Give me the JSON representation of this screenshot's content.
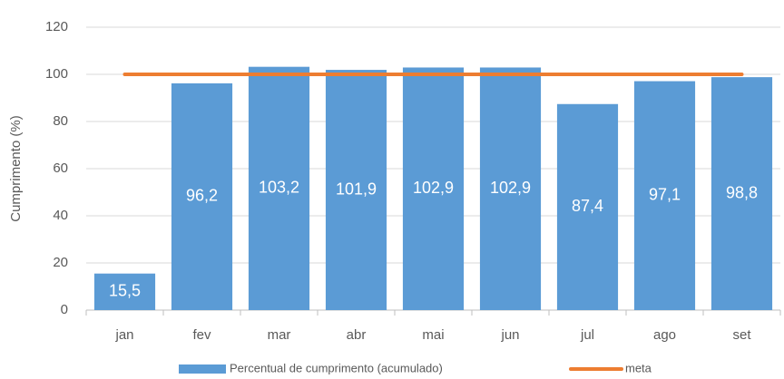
{
  "chart_data": {
    "type": "bar",
    "y_label": "Cumprimento (%)",
    "categories": [
      "jan",
      "fev",
      "mar",
      "abr",
      "mai",
      "jun",
      "jul",
      "ago",
      "set"
    ],
    "series": [
      {
        "name": "Percentual de cumprimento (acumulado)",
        "color": "#5b9bd5",
        "values": [
          15.5,
          96.2,
          103.2,
          101.9,
          102.9,
          102.9,
          87.4,
          97.1,
          98.8
        ],
        "value_labels": [
          "15,5",
          "96,2",
          "103,2",
          "101,9",
          "102,9",
          "102,9",
          "87,4",
          "97,1",
          "98,8"
        ]
      },
      {
        "name": "meta",
        "type": "line",
        "color": "#ed7d31",
        "values": [
          100,
          100,
          100,
          100,
          100,
          100,
          100,
          100,
          100
        ]
      }
    ],
    "ylim": [
      0,
      120
    ],
    "yticks": [
      0,
      20,
      40,
      60,
      80,
      100,
      120
    ],
    "grid": true
  }
}
